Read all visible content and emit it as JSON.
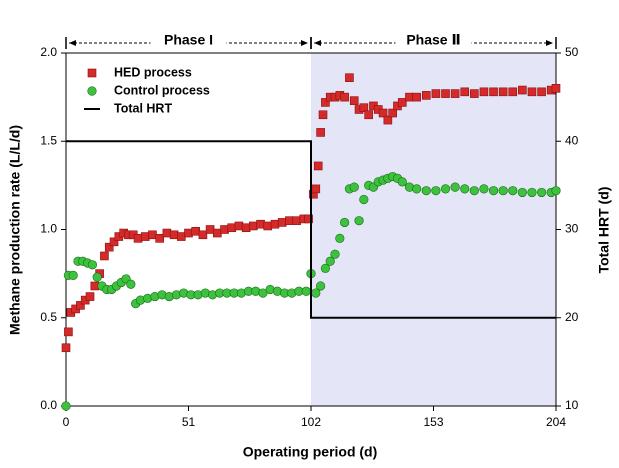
{
  "chart_data": {
    "type": "scatter",
    "x_label": "Operating period (d)",
    "y_label": "Methane production rate (L/L/d)",
    "y2_label": "Total HRT (d)",
    "xlim": [
      0,
      204
    ],
    "xticks": [
      0,
      51,
      102,
      153,
      204
    ],
    "ylim": [
      0,
      2.0
    ],
    "yticks": [
      {
        "value": 0,
        "label": "0.0"
      },
      {
        "value": 0.5,
        "label": "0.5"
      },
      {
        "value": 1.0,
        "label": "1.0"
      },
      {
        "value": 1.5,
        "label": "1.5"
      },
      {
        "value": 2.0,
        "label": "2.0"
      }
    ],
    "y2lim": [
      10,
      50
    ],
    "y2ticks": [
      10,
      20,
      30,
      40,
      50
    ],
    "legend": "upper-left",
    "shaded_region": {
      "x": [
        102,
        204
      ],
      "color": "#e4e6f8"
    },
    "annotations": [
      {
        "text": "Phase I",
        "x": [
          0,
          102
        ]
      },
      {
        "text": "Phase Ⅱ",
        "x": [
          102,
          204
        ]
      }
    ],
    "series": [
      {
        "name": "HED process",
        "color": "#d42a2a",
        "marker": "square",
        "x": [
          0,
          1,
          2,
          4,
          6,
          8,
          10,
          12,
          14,
          16,
          18,
          20,
          22,
          24,
          26,
          28,
          30,
          33,
          36,
          39,
          42,
          45,
          48,
          51,
          54,
          57,
          60,
          63,
          66,
          69,
          72,
          75,
          78,
          81,
          84,
          87,
          90,
          93,
          96,
          99,
          101,
          103,
          104,
          105,
          106,
          107,
          108,
          110,
          112,
          114,
          116,
          118,
          120,
          122,
          124,
          126,
          128,
          130,
          132,
          134,
          136,
          138,
          140,
          143,
          146,
          150,
          154,
          158,
          162,
          166,
          170,
          174,
          178,
          182,
          186,
          190,
          194,
          198,
          202,
          204
        ],
        "values": [
          0.33,
          0.42,
          0.53,
          0.55,
          0.57,
          0.6,
          0.62,
          0.68,
          0.75,
          0.85,
          0.9,
          0.93,
          0.96,
          0.98,
          0.97,
          0.97,
          0.95,
          0.96,
          0.97,
          0.95,
          0.98,
          0.97,
          0.96,
          0.98,
          0.99,
          0.97,
          1.0,
          0.98,
          1.0,
          1.01,
          1.02,
          1.01,
          1.02,
          1.03,
          1.02,
          1.03,
          1.04,
          1.05,
          1.05,
          1.06,
          1.06,
          1.2,
          1.23,
          1.36,
          1.55,
          1.65,
          1.72,
          1.75,
          1.75,
          1.76,
          1.75,
          1.86,
          1.73,
          1.68,
          1.69,
          1.65,
          1.7,
          1.68,
          1.66,
          1.62,
          1.66,
          1.7,
          1.72,
          1.75,
          1.75,
          1.76,
          1.77,
          1.77,
          1.77,
          1.78,
          1.77,
          1.78,
          1.78,
          1.78,
          1.78,
          1.79,
          1.78,
          1.78,
          1.79,
          1.8
        ]
      },
      {
        "name": "Control process",
        "color": "#3dc23d",
        "marker": "circle",
        "x": [
          0,
          1,
          3,
          5,
          7,
          9,
          11,
          13,
          15,
          17,
          19,
          21,
          23,
          25,
          27,
          29,
          31,
          34,
          37,
          40,
          43,
          46,
          49,
          52,
          55,
          58,
          61,
          64,
          67,
          70,
          73,
          76,
          79,
          82,
          85,
          88,
          91,
          94,
          97,
          100,
          102,
          104,
          106,
          108,
          110,
          112,
          114,
          116,
          118,
          120,
          122,
          124,
          126,
          128,
          130,
          132,
          134,
          136,
          138,
          140,
          143,
          146,
          150,
          154,
          158,
          162,
          166,
          170,
          174,
          178,
          182,
          186,
          190,
          194,
          198,
          202,
          204
        ],
        "values": [
          0.0,
          0.74,
          0.74,
          0.82,
          0.82,
          0.81,
          0.8,
          0.73,
          0.68,
          0.66,
          0.66,
          0.68,
          0.7,
          0.72,
          0.69,
          0.58,
          0.6,
          0.61,
          0.62,
          0.63,
          0.62,
          0.63,
          0.64,
          0.63,
          0.63,
          0.64,
          0.63,
          0.64,
          0.64,
          0.64,
          0.64,
          0.65,
          0.65,
          0.64,
          0.66,
          0.65,
          0.64,
          0.64,
          0.65,
          0.65,
          0.75,
          0.64,
          0.68,
          0.78,
          0.82,
          0.86,
          0.95,
          1.04,
          1.23,
          1.24,
          1.05,
          1.17,
          1.25,
          1.24,
          1.27,
          1.28,
          1.29,
          1.3,
          1.29,
          1.27,
          1.24,
          1.23,
          1.22,
          1.22,
          1.23,
          1.24,
          1.23,
          1.22,
          1.23,
          1.22,
          1.22,
          1.22,
          1.21,
          1.21,
          1.21,
          1.21,
          1.22
        ]
      },
      {
        "name": "Total HRT",
        "color": "#000000",
        "marker": "line",
        "axis": "y2",
        "x": [
          0,
          102,
          102,
          204
        ],
        "values": [
          40,
          40,
          20,
          20
        ]
      }
    ]
  }
}
